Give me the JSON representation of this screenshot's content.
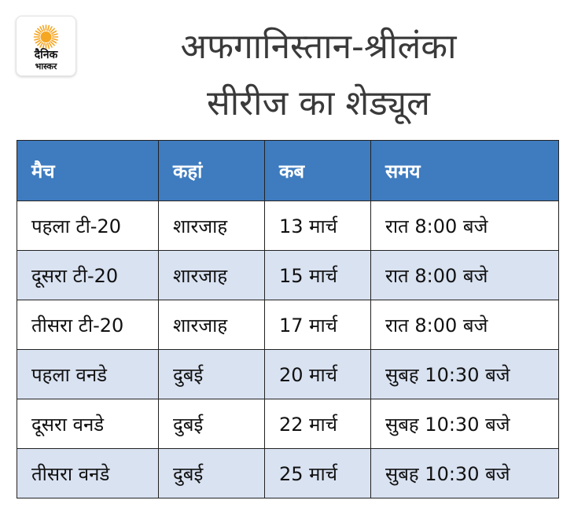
{
  "logo": {
    "line1": "दैनिक",
    "line2": "भास्कर",
    "sun_color": "#f5a623"
  },
  "title": {
    "line1": "अफगानिस्तान-श्रीलंका",
    "line2": "सीरीज का शेड्यूल"
  },
  "table": {
    "header_color": "#3e7bbf",
    "stripe_color": "#d9e2f1",
    "headers": [
      "मैच",
      "कहां",
      "कब",
      "समय"
    ],
    "rows": [
      [
        "पहला टी-20",
        "शारजाह",
        "13 मार्च",
        "रात 8:00 बजे"
      ],
      [
        "दूसरा टी-20",
        "शारजाह",
        "15 मार्च",
        "रात 8:00 बजे"
      ],
      [
        "तीसरा टी-20",
        "शारजाह",
        "17 मार्च",
        "रात 8:00 बजे"
      ],
      [
        "पहला वनडे",
        "दुबई",
        "20 मार्च",
        "सुबह 10:30 बजे"
      ],
      [
        "दूसरा वनडे",
        "दुबई",
        "22 मार्च",
        "सुबह 10:30 बजे"
      ],
      [
        "तीसरा वनडे",
        "दुबई",
        "25 मार्च",
        "सुबह 10:30 बजे"
      ]
    ]
  }
}
